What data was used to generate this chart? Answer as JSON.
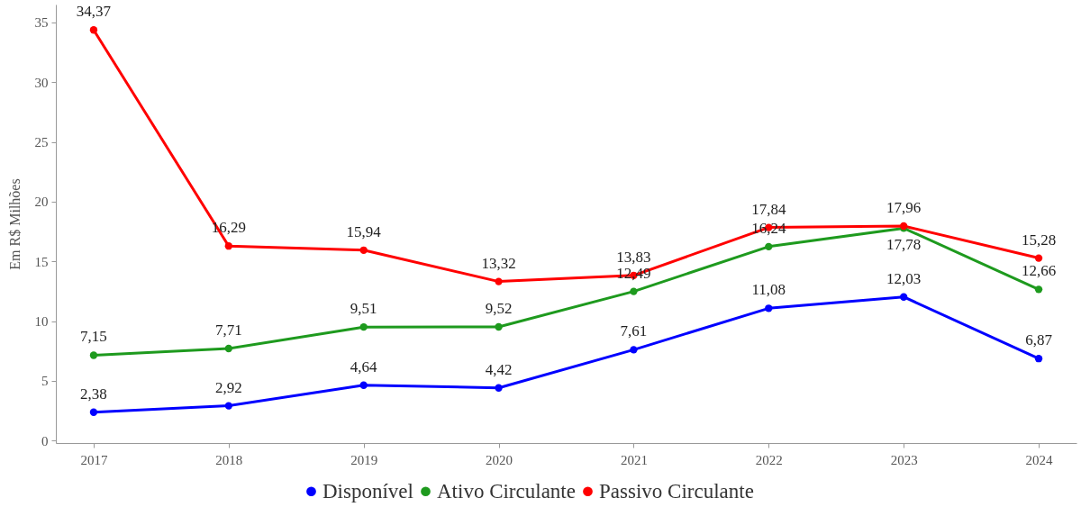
{
  "chart_data": {
    "type": "line",
    "ylabel": "Em R$ Milhões",
    "categories": [
      "2017",
      "2018",
      "2019",
      "2020",
      "2021",
      "2022",
      "2023",
      "2024"
    ],
    "series": [
      {
        "name": "Disponível",
        "color": "#0000ff",
        "values": [
          2.38,
          2.92,
          4.64,
          4.42,
          7.61,
          11.08,
          12.03,
          6.87
        ],
        "value_labels": [
          "2,38",
          "2,92",
          "4,64",
          "4,42",
          "7,61",
          "11,08",
          "12,03",
          "6,87"
        ]
      },
      {
        "name": "Ativo Circulante",
        "color": "#1e9a1e",
        "values": [
          7.15,
          7.71,
          9.51,
          9.52,
          12.49,
          16.24,
          17.78,
          12.66
        ],
        "value_labels": [
          "7,15",
          "7,71",
          "9,51",
          "9,52",
          "12,49",
          "16,24",
          "17,78",
          "12,66"
        ]
      },
      {
        "name": "Passivo Circulante",
        "color": "#ff0000",
        "values": [
          34.37,
          16.29,
          15.94,
          13.32,
          13.83,
          17.84,
          17.96,
          15.28
        ],
        "value_labels": [
          "34,37",
          "16,29",
          "15,94",
          "13,32",
          "13,83",
          "17,84",
          "17,96",
          "15,28"
        ]
      }
    ],
    "ylim": [
      -0.2,
      36.5
    ],
    "yticks": [
      0,
      5,
      10,
      15,
      20,
      25,
      30,
      35
    ],
    "grid": false,
    "legend": "bottom",
    "marker": "circle",
    "line_style": "solid"
  }
}
